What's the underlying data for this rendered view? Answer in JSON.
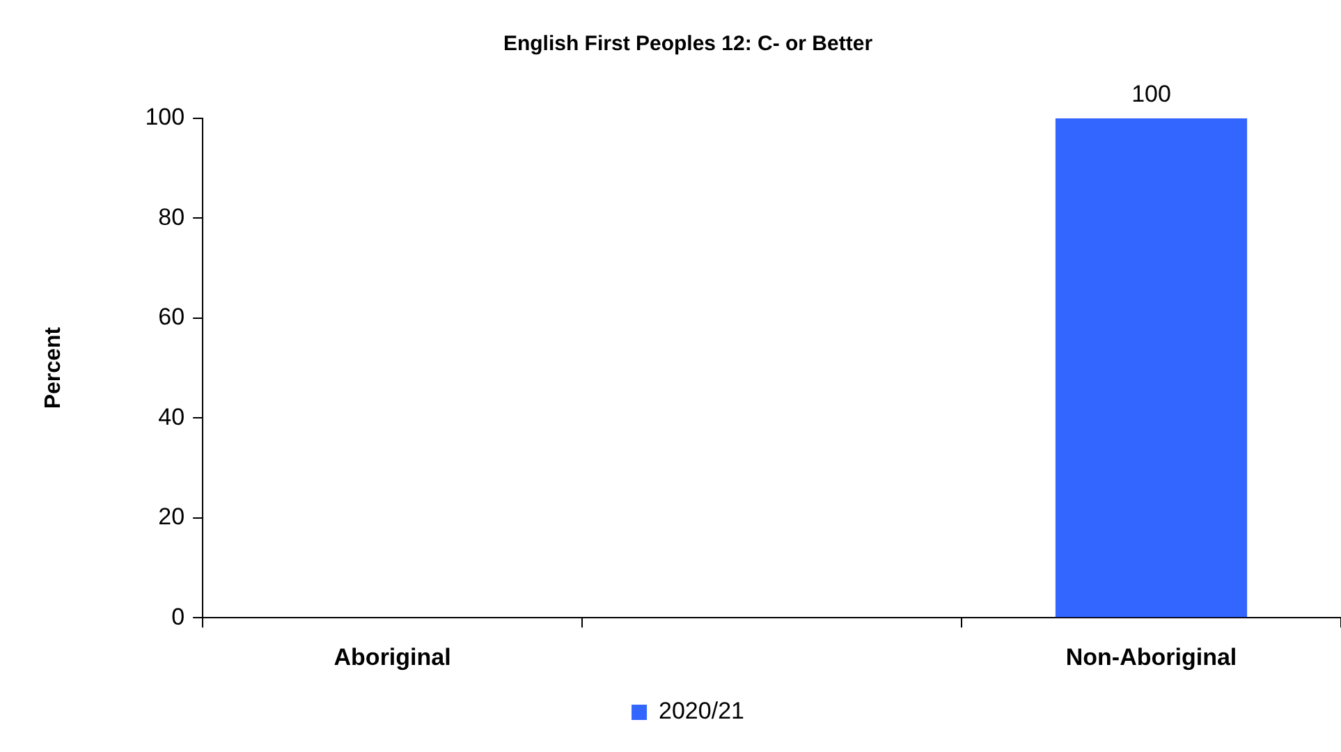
{
  "chart_data": {
    "type": "bar",
    "title": "English First Peoples 12: C- or Better",
    "ylabel": "Percent",
    "categories": [
      "Aboriginal",
      null,
      "Non-Aboriginal"
    ],
    "series": [
      {
        "name": "2020/21",
        "color": "#3366ff",
        "values": [
          null,
          null,
          100
        ]
      }
    ],
    "ylim": [
      0,
      100
    ],
    "yticks": [
      0,
      20,
      40,
      60,
      80,
      100
    ],
    "grid": false,
    "legend": "bottom",
    "data_labels": true
  }
}
